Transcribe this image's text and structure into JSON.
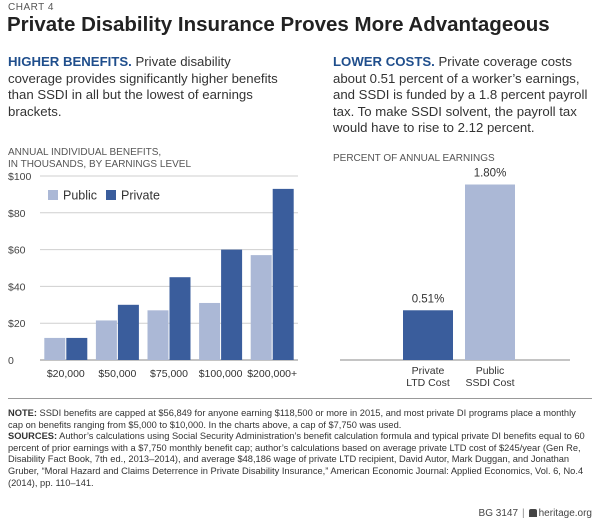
{
  "header": {
    "chart_label": "CHART 4",
    "title": "Private Disability Insurance Proves More Advantageous"
  },
  "left_panel": {
    "lead": "HIGHER BENEFITS.",
    "body": " Private disability coverage provides significantly higher benefits than SSDI in all but the lowest of earnings brackets.",
    "axis_caption_line1": "ANNUAL INDIVIDUAL BENEFITS,",
    "axis_caption_line2": "IN THOUSANDS, BY EARNINGS LEVEL"
  },
  "right_panel": {
    "lead": "LOWER COSTS.",
    "body": " Private coverage costs about 0.51 percent of a worker’s earnings, and SSDI is funded by a 1.8 percent payroll tax. To make SSDI solvent, the payroll tax would have to rise to 2.12 percent.",
    "axis_caption": "PERCENT OF ANNUAL EARNINGS"
  },
  "chart_data": [
    {
      "type": "bar",
      "categories": [
        "$20,000",
        "$50,000",
        "$75,000",
        "$100,000",
        "$200,000+"
      ],
      "series": [
        {
          "name": "Public",
          "values": [
            12,
            21.5,
            27,
            31,
            57
          ],
          "color": "#abb8d6"
        },
        {
          "name": "Private",
          "values": [
            12,
            30,
            45,
            60,
            93
          ],
          "color": "#3a5d9c"
        }
      ],
      "ylim": [
        0,
        100
      ],
      "yticks": [
        "0",
        "$20",
        "$40",
        "$60",
        "$80",
        "$100"
      ],
      "ytick_values": [
        0,
        20,
        40,
        60,
        80,
        100
      ],
      "legend": "top-left",
      "grid": true
    },
    {
      "type": "bar",
      "categories": [
        "Private LTD Cost",
        "Public SSDI Cost"
      ],
      "category_lines": [
        [
          "Private",
          "LTD Cost"
        ],
        [
          "Public",
          "SSDI Cost"
        ]
      ],
      "values": [
        0.51,
        1.8
      ],
      "data_labels": [
        "0.51%",
        "1.80%"
      ],
      "colors": [
        "#3a5d9c",
        "#abb8d6"
      ],
      "ylim": [
        0,
        2.0
      ]
    }
  ],
  "notes": {
    "note_label": "NOTE:",
    "note_text": " SSDI benefits are capped at $56,849 for anyone earning $118,500 or more in 2015, and most private DI programs place a monthly cap on benefits ranging from $5,000 to $10,000. In the charts above, a cap of $7,750 was used.",
    "sources_label": "SOURCES:",
    "sources_text": " Author’s calculations using Social Security Administration’s benefit calculation formula and typical private DI benefits equal to 60 percent of prior earnings with a $7,750 monthly benefit cap; author’s calculations based on average private LTD cost of $245/year (Gen Re, Disability Fact Book, 7th ed., 2013–2014), and average $48,186 wage of private LTD recipient, David Autor, Mark Duggan, and Jonathan Gruber, “Moral Hazard and Claims Deterrence in Private Disability Insurance,” American Economic Journal: Applied Economics, Vol. 6, No.4 (2014), pp. 110–141."
  },
  "footer": {
    "code": "BG 3147",
    "site": "heritage.org"
  }
}
